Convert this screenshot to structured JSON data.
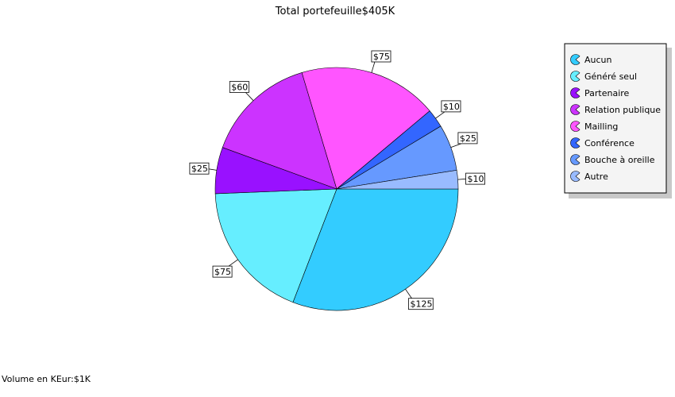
{
  "chart_data": {
    "type": "pie",
    "title": "Total portefeuille$405K",
    "footer": "Volume en KEur:$1K",
    "slices": [
      {
        "name": "Aucun",
        "value": 125,
        "label": "$125",
        "color": "#33ccff"
      },
      {
        "name": "Généré seul",
        "value": 75,
        "label": "$75",
        "color": "#66eeff"
      },
      {
        "name": "Partenaire",
        "value": 25,
        "label": "$25",
        "color": "#9911ff"
      },
      {
        "name": "Relation publique",
        "value": 60,
        "label": "$60",
        "color": "#cc33ff"
      },
      {
        "name": "Mailling",
        "value": 75,
        "label": "$75",
        "color": "#ff55ff"
      },
      {
        "name": "Conférence",
        "value": 10,
        "label": "$10",
        "color": "#3366ff"
      },
      {
        "name": "Bouche à oreille",
        "value": 25,
        "label": "$25",
        "color": "#6699ff"
      },
      {
        "name": "Autre",
        "value": 10,
        "label": "$10",
        "color": "#99bbff"
      }
    ],
    "direction": "clockwise",
    "start": "right (3 o'clock)",
    "legend_position": "right"
  }
}
